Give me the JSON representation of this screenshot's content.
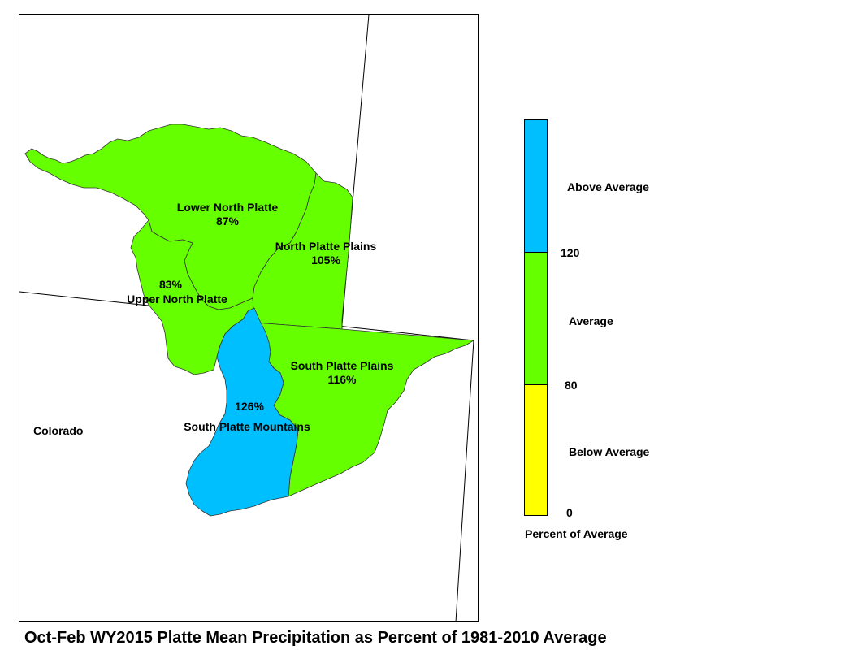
{
  "map": {
    "state_label": "Colorado",
    "colors": {
      "below": "#ffff00",
      "average": "#66ff00",
      "above": "#00bfff"
    },
    "basins": [
      {
        "id": "lower-north-platte",
        "name": "Lower North Platte",
        "value": "87%",
        "category": "average"
      },
      {
        "id": "north-platte-plains",
        "name": "North Platte Plains",
        "value": "105%",
        "category": "average"
      },
      {
        "id": "upper-north-platte",
        "name": "Upper North Platte",
        "value": "83%",
        "category": "average"
      },
      {
        "id": "south-platte-plains",
        "name": "South Platte Plains",
        "value": "116%",
        "category": "average"
      },
      {
        "id": "south-platte-mountains",
        "name": "South Platte Mountains",
        "value": "126%",
        "category": "above"
      }
    ]
  },
  "legend": {
    "classes": [
      {
        "label": "Above Average",
        "color": "#00bfff"
      },
      {
        "label": "Average",
        "color": "#66ff00"
      },
      {
        "label": "Below Average",
        "color": "#ffff00"
      }
    ],
    "breaks": [
      "120",
      "80",
      "0"
    ],
    "title": "Percent of Average"
  },
  "caption": "Oct-Feb WY2015 Platte Mean Precipitation as Percent of 1981-2010 Average"
}
